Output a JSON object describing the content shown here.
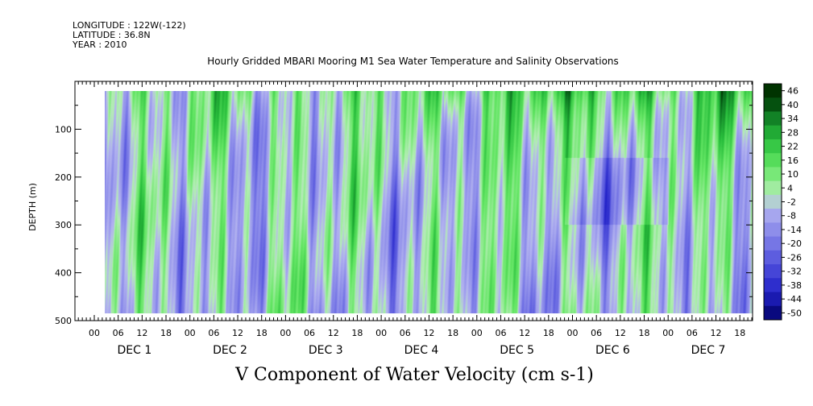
{
  "header": {
    "longitude": "LONGITUDE : 122W(-122)",
    "latitude": "LATITUDE : 36.8N",
    "year": "YEAR : 2010"
  },
  "chart_data": {
    "type": "heatmap",
    "title": "Hourly Gridded MBARI Mooring M1 Sea Water Temperature and Salinity Observations",
    "xlabel": "",
    "ylabel": "DEPTH (m)",
    "footer_label": "V Component of Water Velocity (cm s-1)",
    "ylim": [
      500,
      0
    ],
    "y_ticks": [
      "100",
      "200",
      "300",
      "400",
      "500"
    ],
    "hour_labels": [
      "00",
      "06",
      "12",
      "18"
    ],
    "days": [
      "DEC  1",
      "DEC  2",
      "DEC  3",
      "DEC  4",
      "DEC  5",
      "DEC  6",
      "DEC  7"
    ],
    "colorbar": {
      "min": -50,
      "max": 46,
      "labels": [
        "46",
        "40",
        "34",
        "28",
        "22",
        "16",
        "10",
        "4",
        "-2",
        "-8",
        "-14",
        "-20",
        "-26",
        "-32",
        "-38",
        "-44",
        "-50"
      ]
    },
    "colors": {
      "strong_negative": "#000066",
      "negative": "#9a9ae6",
      "near_zero": "#b8ecb8",
      "positive": "#5ee65e",
      "strong_positive": "#003300"
    }
  }
}
